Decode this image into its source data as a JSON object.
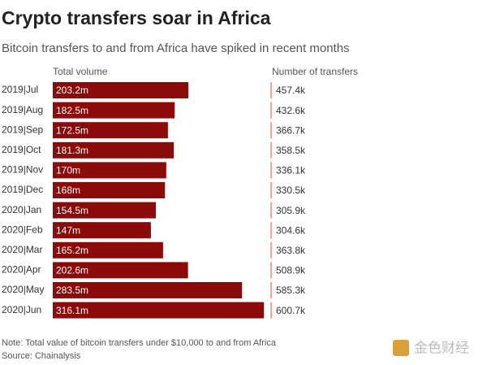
{
  "chart_data": {
    "type": "bar",
    "orientation": "horizontal",
    "title": "Crypto transfers soar in Africa",
    "subtitle": "Bitcoin transfers to and from Africa have spiked in recent months",
    "categories": [
      "2019|Jul",
      "2019|Aug",
      "2019|Sep",
      "2019|Oct",
      "2019|Nov",
      "2019|Dec",
      "2020|Jan",
      "2020|Feb",
      "2020|Mar",
      "2020|Apr",
      "2020|May",
      "2020|Jun"
    ],
    "series": [
      {
        "name": "Total volume",
        "color": "#8b0a0a",
        "values": [
          203200000,
          182500000,
          172500000,
          181300000,
          170000000,
          168000000,
          154500000,
          147000000,
          165200000,
          202600000,
          283500000,
          316100000
        ],
        "value_labels": [
          "203.2m",
          "182.5m",
          "172.5m",
          "181.3m",
          "170m",
          "168m",
          "154.5m",
          "147m",
          "165.2m",
          "202.6m",
          "283.5m",
          "316.1m"
        ]
      },
      {
        "name": "Number of transfers",
        "color": "#e0502a",
        "values": [
          457400,
          432600,
          366700,
          358500,
          336100,
          330500,
          305900,
          304600,
          363800,
          508900,
          585300,
          600700
        ],
        "value_labels": [
          "457.4k",
          "432.6k",
          "366.7k",
          "358.5k",
          "336.1k",
          "330.5k",
          "305.9k",
          "304.6k",
          "363.8k",
          "508.9k",
          "585.3k",
          "600.7k"
        ]
      }
    ],
    "note": "Note: Total value of bitcoin transfers under $10,000 to and from Africa",
    "source": "Source: Chainalysis",
    "watermark": "金色财经"
  }
}
